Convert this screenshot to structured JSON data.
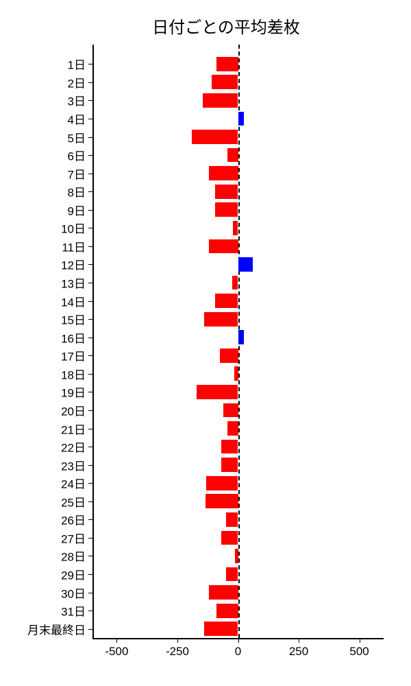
{
  "chart": {
    "type": "bar-horizontal",
    "title": "日付ごとの平均差枚",
    "title_fontsize": 24,
    "background_color": "#ffffff",
    "text_color": "#000000",
    "xlim": [
      -600,
      600
    ],
    "xtick_values": [
      -500,
      -250,
      0,
      250,
      500
    ],
    "xtick_labels": [
      "-500",
      "-250",
      "0",
      "250",
      "500"
    ],
    "categories": [
      "1日",
      "2日",
      "3日",
      "4日",
      "5日",
      "6日",
      "7日",
      "8日",
      "9日",
      "10日",
      "11日",
      "12日",
      "13日",
      "14日",
      "15日",
      "16日",
      "17日",
      "18日",
      "19日",
      "20日",
      "21日",
      "22日",
      "23日",
      "24日",
      "25日",
      "26日",
      "27日",
      "28日",
      "29日",
      "30日",
      "31日",
      "月末最終日"
    ],
    "values": [
      -90,
      -110,
      -145,
      25,
      -190,
      -45,
      -120,
      -95,
      -95,
      -20,
      -120,
      60,
      -25,
      -95,
      -140,
      25,
      -75,
      -15,
      -170,
      -60,
      -45,
      -70,
      -70,
      -130,
      -135,
      -50,
      -70,
      -12,
      -50,
      -120,
      -90,
      -140
    ],
    "positive_color": "#0000ff",
    "negative_color": "#ff0000",
    "axis_color": "#000000",
    "bar_height_ratio": 0.78,
    "label_fontsize": 17
  }
}
